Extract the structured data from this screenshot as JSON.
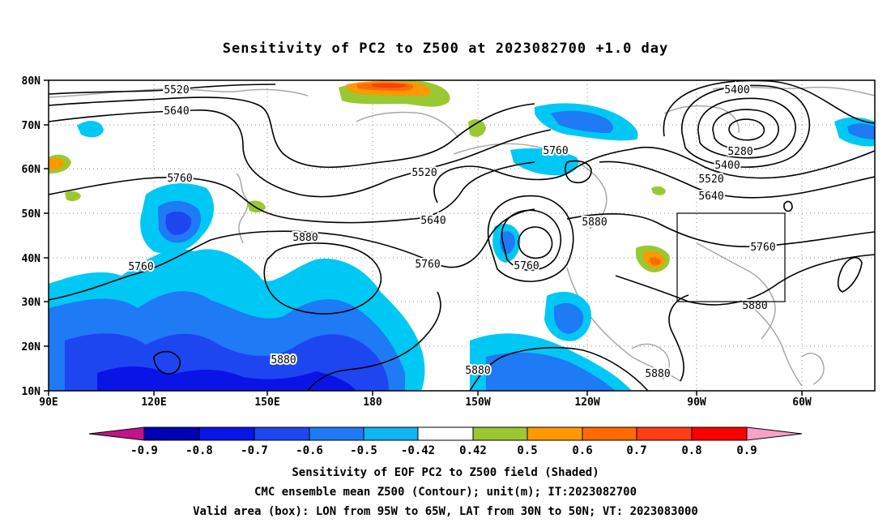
{
  "title": "Sensitivity of PC2 to Z500 at 2023082700 +1.0 day",
  "map": {
    "lat_ticks": [
      "80N",
      "70N",
      "60N",
      "50N",
      "40N",
      "30N",
      "20N",
      "10N"
    ],
    "lon_ticks": [
      "90E",
      "120E",
      "150E",
      "180",
      "150W",
      "120W",
      "90W",
      "60W"
    ],
    "lon_range_deg": [
      90,
      325
    ],
    "lat_range_deg": [
      10,
      80
    ],
    "valid_box": {
      "lon_west": "95W",
      "lon_east": "65W",
      "lat_south": "30N",
      "lat_north": "50N"
    },
    "contour_labels": [
      "5520",
      "5640",
      "5760",
      "5400",
      "5280",
      "5400",
      "5520",
      "5640",
      "5760",
      "5520",
      "5640",
      "5880",
      "5760",
      "5760",
      "5880",
      "5760",
      "5760",
      "5880",
      "5880",
      "5880",
      "5880"
    ]
  },
  "colorbar": {
    "labels": [
      "-0.9",
      "-0.8",
      "-0.7",
      "-0.6",
      "-0.5",
      "-0.42",
      "0.42",
      "0.5",
      "0.6",
      "0.7",
      "0.8",
      "0.9"
    ],
    "colors": [
      "#0000b4",
      "#0a14e6",
      "#1e46f0",
      "#1e7af5",
      "#0fb4f0",
      "#00c8f5",
      "#ffffff",
      "#9ac832",
      "#ff9900",
      "#ff6a00",
      "#ff3c14",
      "#ff0000"
    ],
    "below_color": "#c0138c",
    "above_color": "#f7a0c8"
  },
  "captions": [
    "Sensitivity of EOF PC2 to Z500 field (Shaded)",
    "CMC ensemble mean Z500 (Contour); unit(m); IT:2023082700",
    "Valid area (box): LON from 95W to 65W, LAT from 30N to 50N; VT: 2023083000"
  ]
}
